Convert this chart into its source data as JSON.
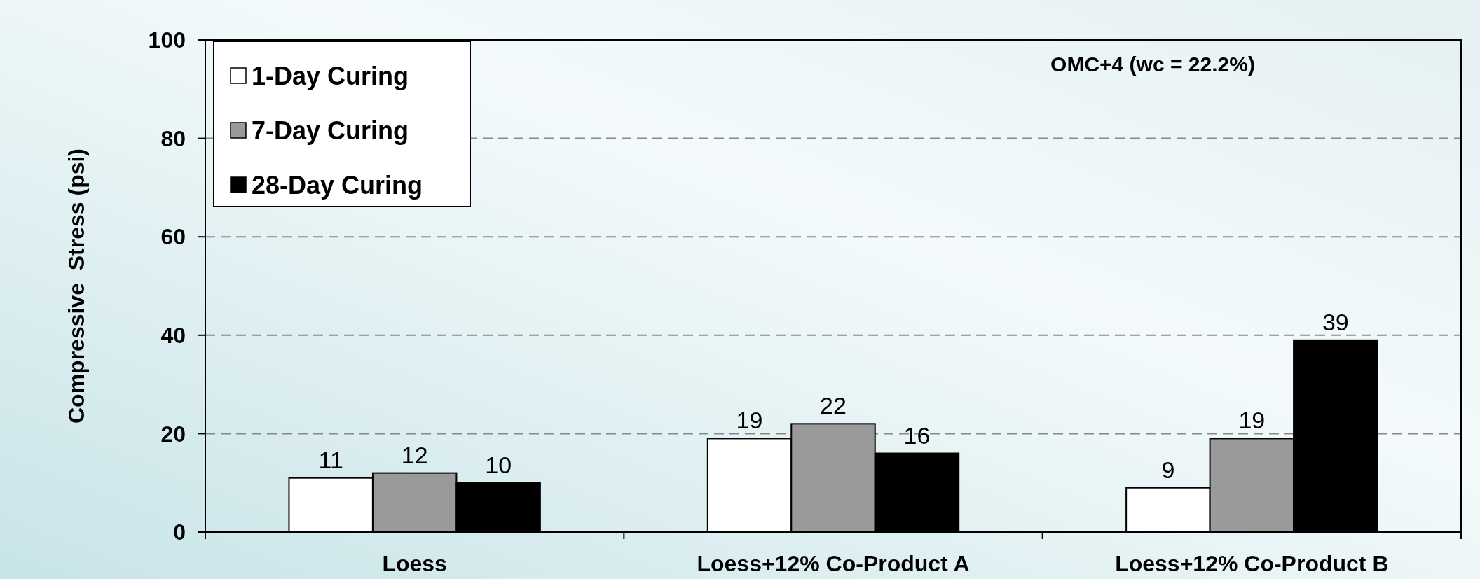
{
  "chart_data": {
    "type": "bar",
    "ylabel": "Compressive  Stress (psi)",
    "categories": [
      "Loess",
      "Loess+12% Co-Product A",
      "Loess+12% Co-Product B"
    ],
    "series": [
      {
        "name": "1-Day Curing",
        "color": "#ffffff",
        "values": [
          11,
          19,
          9
        ]
      },
      {
        "name": "7-Day Curing",
        "color": "#9a9a9a",
        "values": [
          12,
          22,
          19
        ]
      },
      {
        "name": "28-Day Curing",
        "color": "#000000",
        "values": [
          10,
          16,
          39
        ]
      }
    ],
    "ylim": [
      0,
      100
    ],
    "yticks": [
      0,
      20,
      40,
      60,
      80,
      100
    ],
    "grid": "y",
    "legend": "top left",
    "data_labels": true,
    "annotations": [
      "OMC+4 (wc = 22.2%)"
    ]
  }
}
